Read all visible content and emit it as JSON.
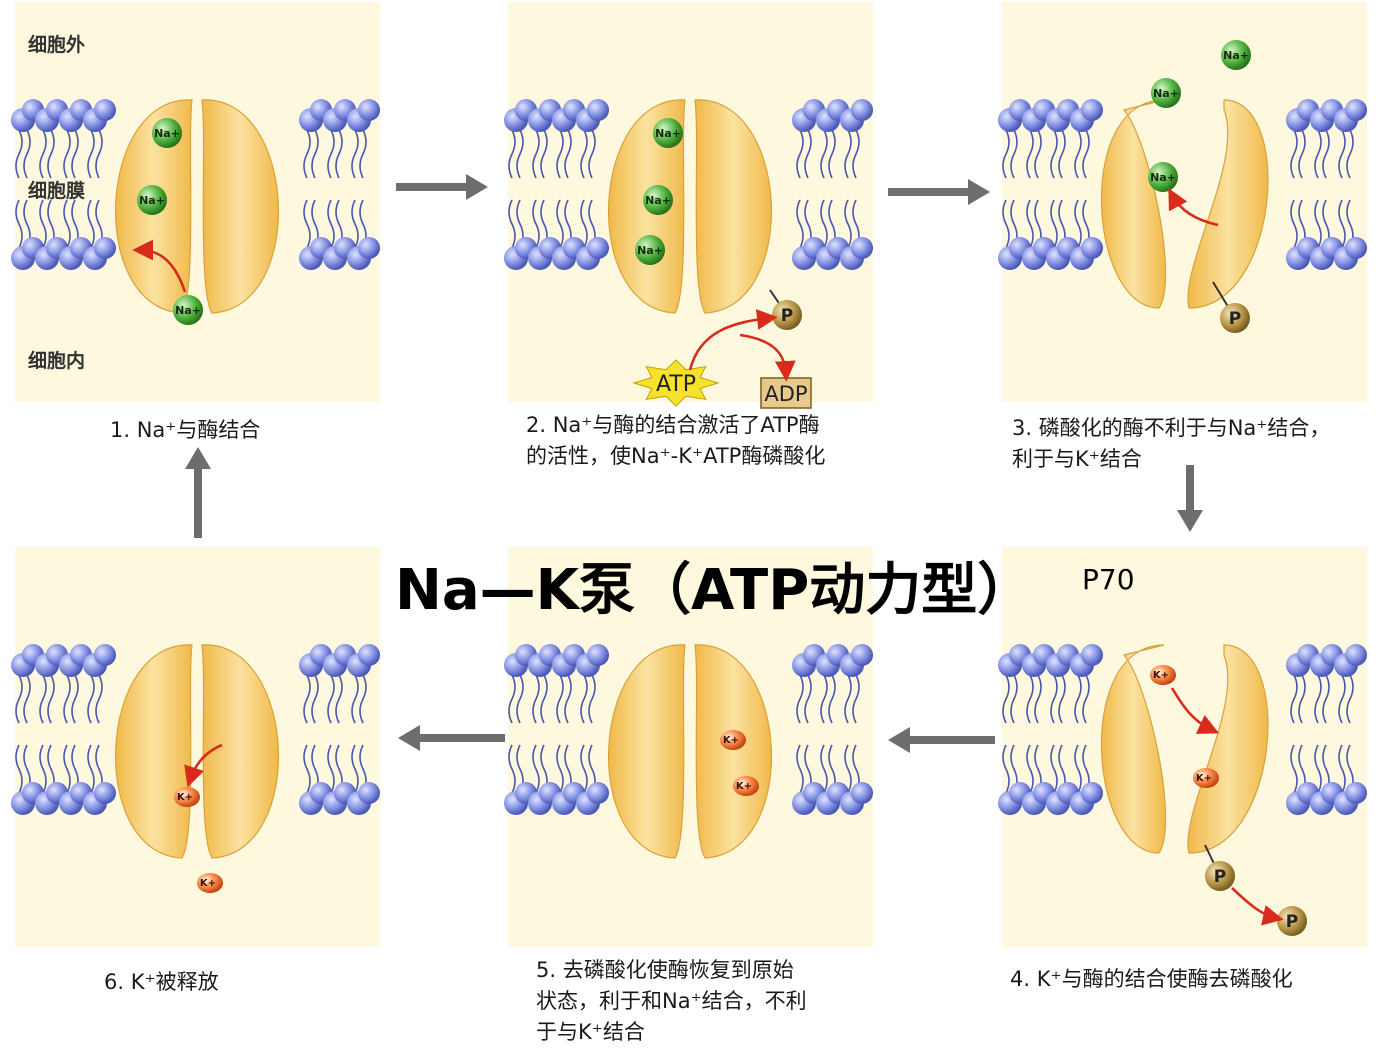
{
  "title": "Na—K泵（ATP动力型）",
  "page_ref": "P70",
  "regions": {
    "outside": "细胞外",
    "membrane": "细胞膜",
    "inside": "细胞内"
  },
  "ions": {
    "na": "Na+",
    "k": "K+"
  },
  "molecules": {
    "atp": "ATP",
    "adp": "ADP",
    "phosphate": "P"
  },
  "steps": [
    {
      "caption": "1. Na⁺与酶结合"
    },
    {
      "caption": "2. Na⁺与酶的结合激活了ATP酶\n的活性，使Na⁺-K⁺ATP酶磷酸化"
    },
    {
      "caption": "3. 磷酸化的酶不利于与Na⁺结合，\n利于与K⁺结合"
    },
    {
      "caption": "4. K⁺与酶的结合使酶去磷酸化"
    },
    {
      "caption": "5. 去磷酸化使酶恢复到原始\n状态，利于和Na⁺结合，不利\n于与K⁺结合"
    },
    {
      "caption": "6. K⁺被释放"
    }
  ],
  "colors": {
    "panel_bg": "#fdf8de",
    "lipid_head": "#7f8fe0",
    "lipid_tail": "#4a55b0",
    "protein": "#f3c45e",
    "protein_light": "#fbe4a3",
    "na_ion": "#4caf3a",
    "k_ion": "#e85a1c",
    "phosphate": "#b08c3a",
    "atp_star": "#f6e22c",
    "adp_box": "#e7c98c",
    "red_arrow": "#d72b1d",
    "gray_arrow": "#6d6d6d"
  }
}
